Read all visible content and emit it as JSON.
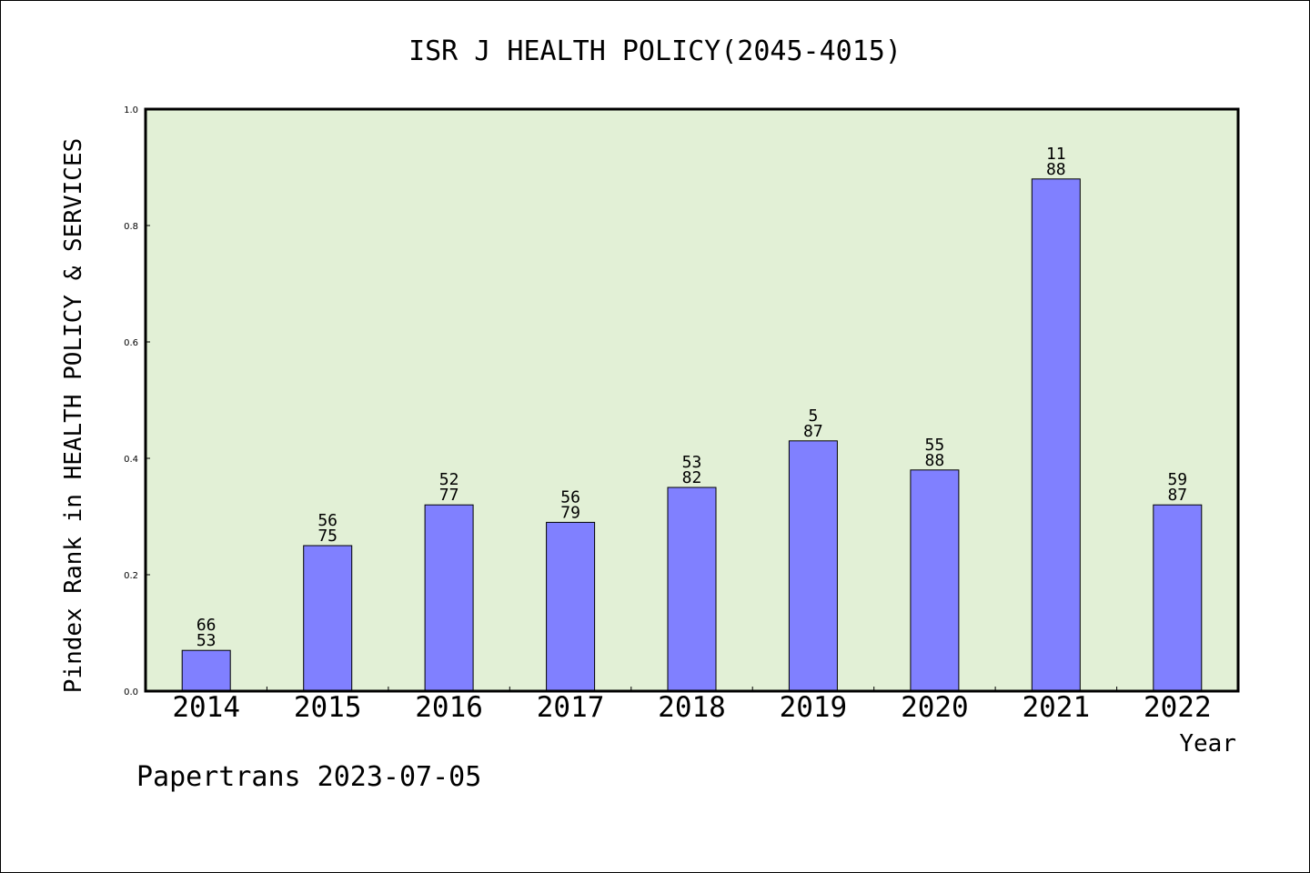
{
  "chart_data": {
    "type": "bar",
    "title": "ISR J HEALTH POLICY(2045-4015)",
    "xlabel": "Year",
    "ylabel": "Pindex Rank in HEALTH POLICY & SERVICES",
    "ylim": [
      0,
      1.0
    ],
    "yticks": [
      "0.0",
      "0.2",
      "0.4",
      "0.6",
      "0.8",
      "1.0"
    ],
    "categories": [
      "2014",
      "2015",
      "2016",
      "2017",
      "2018",
      "2019",
      "2020",
      "2021",
      "2022"
    ],
    "values": [
      0.07,
      0.25,
      0.32,
      0.29,
      0.35,
      0.43,
      0.38,
      0.88,
      0.32
    ],
    "labels_top": [
      "66",
      "56",
      "52",
      "56",
      "53",
      "5",
      "55",
      "11",
      "59"
    ],
    "labels_bottom": [
      "53",
      "75",
      "77",
      "79",
      "82",
      "87",
      "88",
      "88",
      "87"
    ],
    "grid": false,
    "colors": {
      "plot_background": "#e2f0d6",
      "bar_fill": "#8080ff",
      "bar_edge": "#000000"
    }
  },
  "footer": {
    "text": "Papertrans 2023-07-05"
  }
}
